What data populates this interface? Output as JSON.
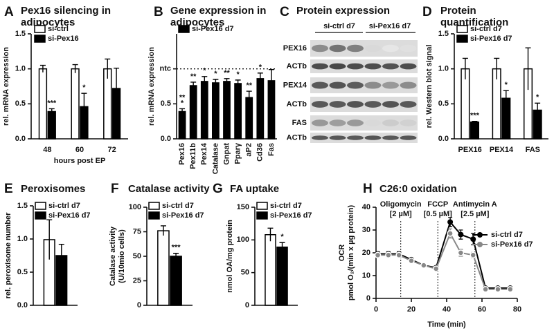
{
  "chart_data": [
    {
      "type": "bar",
      "panel": "A",
      "title": [
        "Pex16 silencing in",
        "adipocytes"
      ],
      "ylabel": [
        "rel. mRNA expression"
      ],
      "xlabel": "hours post EP",
      "categories": [
        "48",
        "60",
        "72"
      ],
      "series": [
        {
          "name": "si-ctrl",
          "color": "#ffffff",
          "values": [
            1.0,
            1.0,
            1.0
          ],
          "errors": [
            0.05,
            0.06,
            0.14
          ]
        },
        {
          "name": "si-Pex16",
          "color": "#000000",
          "values": [
            0.39,
            0.46,
            0.72
          ],
          "errors": [
            0.04,
            0.19,
            0.29
          ],
          "stars": [
            "***",
            "*",
            null
          ]
        }
      ],
      "ylim": [
        0,
        1.5
      ],
      "yticks": [
        {
          "value": 0,
          "label": "0.0"
        },
        {
          "value": 0.5,
          "label": "0.5"
        },
        {
          "value": 1,
          "label": "1.0"
        },
        {
          "value": 1.5,
          "label": "1.5"
        }
      ],
      "legend": "top-left"
    },
    {
      "type": "bar",
      "panel": "B",
      "title": [
        "Gene expression in",
        "adipocytes"
      ],
      "ylabel": [
        "rel. mRNA expression"
      ],
      "categories": [
        "Pex16",
        "Pex11b",
        "Pex14",
        "Catalase",
        "Gnpat",
        "Pparγ",
        "aP2",
        "Cd36",
        "Fas"
      ],
      "series": [
        {
          "name": "si-Pex16 d7",
          "color": "#000000",
          "values": [
            0.39,
            0.76,
            0.82,
            0.8,
            0.82,
            0.79,
            0.59,
            0.86,
            0.83
          ],
          "errors": [
            0.04,
            0.05,
            0.07,
            0.05,
            0.04,
            0.05,
            0.09,
            0.08,
            0.16
          ],
          "stars": [
            [
              "**",
              "*"
            ],
            "**",
            "*",
            "*",
            "**",
            "*",
            "**",
            "*",
            null
          ]
        }
      ],
      "ylim": [
        0,
        1.5
      ],
      "yticks": [
        {
          "value": 0,
          "label": "0.0"
        },
        {
          "value": 0.5,
          "label": "0.5"
        },
        {
          "value": 1,
          "label": "ntc"
        }
      ],
      "reference_line": 1,
      "legend": "top-left",
      "rotate_labels": true
    },
    {
      "type": "bar",
      "panel": "D",
      "title": [
        "Protein",
        "quantification"
      ],
      "ylabel": [
        "rel. Western blot signal"
      ],
      "categories": [
        "PEX16",
        "PEX14",
        "FAS"
      ],
      "series": [
        {
          "name": "si-ctrl d7",
          "color": "#ffffff",
          "values": [
            1.0,
            1.0,
            1.0
          ],
          "errors": [
            0.15,
            0.15,
            0.3
          ]
        },
        {
          "name": "si-Pex16 d7",
          "color": "#000000",
          "values": [
            0.24,
            0.58,
            0.41
          ],
          "errors": [
            0.01,
            0.11,
            0.1
          ],
          "stars": [
            "***",
            "*",
            "*"
          ]
        }
      ],
      "ylim": [
        0,
        1.5
      ],
      "yticks": [
        {
          "value": 0,
          "label": "0.0"
        },
        {
          "value": 0.5,
          "label": "0.5"
        },
        {
          "value": 1,
          "label": "1.0"
        },
        {
          "value": 1.5,
          "label": "1.5"
        }
      ],
      "legend": "top-left"
    },
    {
      "type": "bar",
      "panel": "E",
      "title": [
        "Peroxisomes"
      ],
      "ylabel": [
        "rel. peroxisome number"
      ],
      "categories": [
        null
      ],
      "series": [
        {
          "name": "si-ctrl d7",
          "color": "#ffffff",
          "values": [
            0.99
          ],
          "errors": [
            0.3
          ]
        },
        {
          "name": "si-Pex16 d7",
          "color": "#000000",
          "values": [
            0.75
          ],
          "errors": [
            0.17
          ]
        }
      ],
      "ylim": [
        0,
        1.5
      ],
      "yticks": [
        {
          "value": 0,
          "label": "0.0"
        },
        {
          "value": 0.5,
          "label": "0.5"
        },
        {
          "value": 1,
          "label": "1.0"
        },
        {
          "value": 1.5,
          "label": "1.5"
        }
      ],
      "legend": "top-left"
    },
    {
      "type": "bar",
      "panel": "F",
      "title": [
        "Catalase activity"
      ],
      "ylabel": [
        "Catalase activity",
        "(U/10mio cells)"
      ],
      "categories": [
        null
      ],
      "series": [
        {
          "name": "si-ctrl d7",
          "color": "#ffffff",
          "values": [
            76
          ],
          "errors": [
            5
          ]
        },
        {
          "name": "si-Pex16 d7",
          "color": "#000000",
          "values": [
            50
          ],
          "errors": [
            3
          ],
          "stars": [
            "***"
          ]
        }
      ],
      "ylim": [
        0,
        100
      ],
      "yticks": [
        0,
        25,
        50,
        75,
        100
      ],
      "legend": "top-left"
    },
    {
      "type": "bar",
      "panel": "G",
      "title": [
        "FA uptake"
      ],
      "ylabel": [
        "nmol OA/mg protein"
      ],
      "categories": [
        null
      ],
      "series": [
        {
          "name": "si-ctrl d7",
          "color": "#ffffff",
          "values": [
            108
          ],
          "errors": [
            10
          ]
        },
        {
          "name": "si-Pex16 d7",
          "color": "#000000",
          "values": [
            89
          ],
          "errors": [
            7
          ],
          "stars": [
            "*"
          ]
        }
      ],
      "ylim": [
        0,
        150
      ],
      "yticks": [
        0,
        50,
        100,
        150
      ],
      "legend": "top-left"
    },
    {
      "type": "line",
      "panel": "H",
      "title": [
        "C26:0 oxidation"
      ],
      "ylabel": [
        "OCR",
        "pmol O₂/(min x µg protein)"
      ],
      "xlabel": "Time (min)",
      "x": [
        1,
        7,
        13,
        20,
        27,
        34,
        42,
        48,
        55,
        62,
        69,
        76
      ],
      "series": [
        {
          "name": "si-ctrl d7",
          "color": "#000000",
          "values": [
            19.5,
            19.5,
            19.5,
            17,
            14.5,
            13.5,
            33.5,
            28,
            26,
            4.5,
            4.5,
            4.5
          ],
          "errors": [
            1,
            1,
            1,
            0.6,
            0.6,
            0.6,
            2,
            2,
            2.5,
            0.6,
            0.6,
            0.6
          ]
        },
        {
          "name": "si-Pex16 d7",
          "color": "#888888",
          "values": [
            19,
            19,
            19,
            16.5,
            14.5,
            13,
            28.5,
            20,
            19,
            4,
            4,
            4
          ],
          "errors": [
            1,
            1,
            1,
            0.6,
            0.6,
            0.6,
            2,
            1.5,
            1.2,
            0.6,
            0.6,
            0.6
          ]
        }
      ],
      "injections": [
        {
          "x": 14,
          "label": [
            "Oligomycin",
            "[2 µM]"
          ]
        },
        {
          "x": 35,
          "label": [
            "FCCP",
            "[0.5 µM]"
          ]
        },
        {
          "x": 56,
          "label": [
            "Antimycin A",
            "[2.5 µM]"
          ]
        }
      ],
      "xlim": [
        0,
        80
      ],
      "xticks": [
        0,
        20,
        40,
        60,
        80
      ],
      "ylim": [
        0,
        40
      ],
      "yticks": [
        0,
        10,
        20,
        30,
        40
      ],
      "legend": "right"
    }
  ],
  "blot": {
    "panel": "C",
    "title": "Protein expression",
    "groups": [
      "si-ctrl d7",
      "si-Pex16 d7"
    ],
    "rows": [
      "PEX16",
      "ACTb",
      "PEX14",
      "ACTb",
      "FAS",
      "ACTb"
    ]
  }
}
